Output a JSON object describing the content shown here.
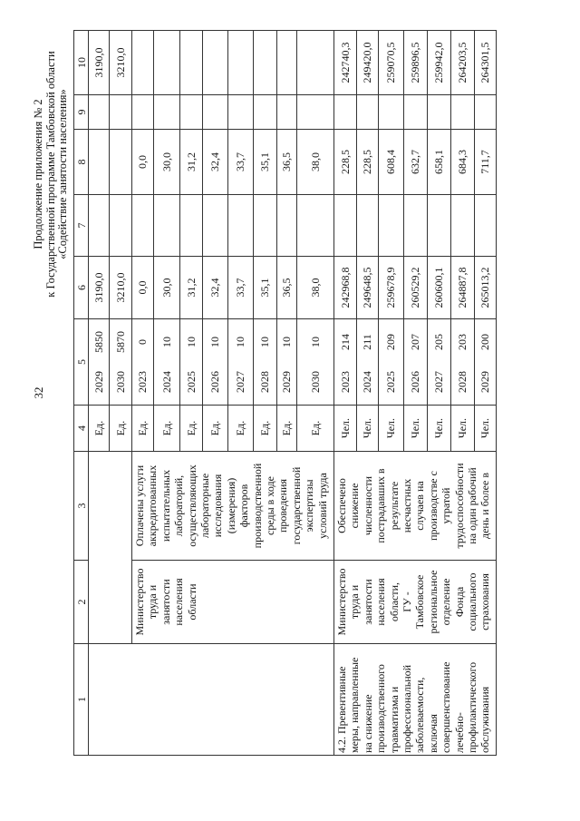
{
  "page_number": "32",
  "title_lines": [
    "Продолжение приложения № 2",
    "к Государственной программе Тамбовской области",
    "«Содействие занятости населения»"
  ],
  "column_numbers": [
    "1",
    "2",
    "3",
    "4",
    "5",
    "6",
    "7",
    "8",
    "9",
    "10"
  ],
  "section_a": {
    "col1": "",
    "col2": "Министерство\nтруда и\nзанятости\nнаселения\nобласти",
    "col3": "Оплачены услуги\nаккредитованных\nиспытательных\nлабораторий,\nосуществляющих\nлабораторные\nисследования\n(измерения)\nфакторов\nпроизводственной\nсреды в ходе\nпроведения\nгосударственной\nэкспертизы\nусловий труда",
    "rows": [
      {
        "unit": "Ед.",
        "year": "2029",
        "value": "5850",
        "c6": "3190,0",
        "c7": "",
        "c8": "",
        "c9": "",
        "c10": "3190,0"
      },
      {
        "unit": "Ед.",
        "year": "2030",
        "value": "5870",
        "c6": "3210,0",
        "c7": "",
        "c8": "",
        "c9": "",
        "c10": "3210,0"
      },
      {
        "unit": "Ед.",
        "year": "2023",
        "value": "0",
        "c6": "0,0",
        "c7": "",
        "c8": "0,0",
        "c9": "",
        "c10": ""
      },
      {
        "unit": "Ед.",
        "year": "2024",
        "value": "10",
        "c6": "30,0",
        "c7": "",
        "c8": "30,0",
        "c9": "",
        "c10": ""
      },
      {
        "unit": "Ед.",
        "year": "2025",
        "value": "10",
        "c6": "31,2",
        "c7": "",
        "c8": "31,2",
        "c9": "",
        "c10": ""
      },
      {
        "unit": "Ед.",
        "year": "2026",
        "value": "10",
        "c6": "32,4",
        "c7": "",
        "c8": "32,4",
        "c9": "",
        "c10": ""
      },
      {
        "unit": "Ед.",
        "year": "2027",
        "value": "10",
        "c6": "33,7",
        "c7": "",
        "c8": "33,7",
        "c9": "",
        "c10": ""
      },
      {
        "unit": "Ед.",
        "year": "2028",
        "value": "10",
        "c6": "35,1",
        "c7": "",
        "c8": "35,1",
        "c9": "",
        "c10": ""
      },
      {
        "unit": "Ед.",
        "year": "2029",
        "value": "10",
        "c6": "36,5",
        "c7": "",
        "c8": "36,5",
        "c9": "",
        "c10": ""
      },
      {
        "unit": "Ед.",
        "year": "2030",
        "value": "10",
        "c6": "38,0",
        "c7": "",
        "c8": "38,0",
        "c9": "",
        "c10": ""
      }
    ]
  },
  "section_b": {
    "col1": "4.2. Превентивные\nмеры, направленные\nна снижение\nпроизводственного\nтравматизма и\nпрофессиональной\nзаболеваемости,\nвключая\nсовершенствование\nлечебно-\nпрофилактического\nобслуживания",
    "col2": "Министерство\nтруда и\nзанятости\nнаселения\nобласти,\nГУ -\nТамбовское\nрегиональное\nотделение\nФонда\nсоциального\nстрахования",
    "col3": "Обеспечено\nснижение\nчисленности\nпострадавших в\nрезультате\nнесчастных\nслучаев на\nпроизводстве с\nутратой\nтрудоспособности\nна один рабочий\nдень и более в",
    "rows": [
      {
        "unit": "Чел.",
        "year": "2023",
        "value": "214",
        "c6": "242968,8",
        "c7": "",
        "c8": "228,5",
        "c9": "",
        "c10": "242740,3"
      },
      {
        "unit": "Чел.",
        "year": "2024",
        "value": "211",
        "c6": "249648,5",
        "c7": "",
        "c8": "228,5",
        "c9": "",
        "c10": "249420,0"
      },
      {
        "unit": "Чел.",
        "year": "2025",
        "value": "209",
        "c6": "259678,9",
        "c7": "",
        "c8": "608,4",
        "c9": "",
        "c10": "259070,5"
      },
      {
        "unit": "Чел.",
        "year": "2026",
        "value": "207",
        "c6": "260529,2",
        "c7": "",
        "c8": "632,7",
        "c9": "",
        "c10": "259896,5"
      },
      {
        "unit": "Чел.",
        "year": "2027",
        "value": "205",
        "c6": "260600,1",
        "c7": "",
        "c8": "658,1",
        "c9": "",
        "c10": "259942,0"
      },
      {
        "unit": "Чел.",
        "year": "2028",
        "value": "203",
        "c6": "264887,8",
        "c7": "",
        "c8": "684,3",
        "c9": "",
        "c10": "264203,5"
      },
      {
        "unit": "Чел.",
        "year": "2029",
        "value": "200",
        "c6": "265013,2",
        "c7": "",
        "c8": "711,7",
        "c9": "",
        "c10": "264301,5"
      }
    ]
  }
}
